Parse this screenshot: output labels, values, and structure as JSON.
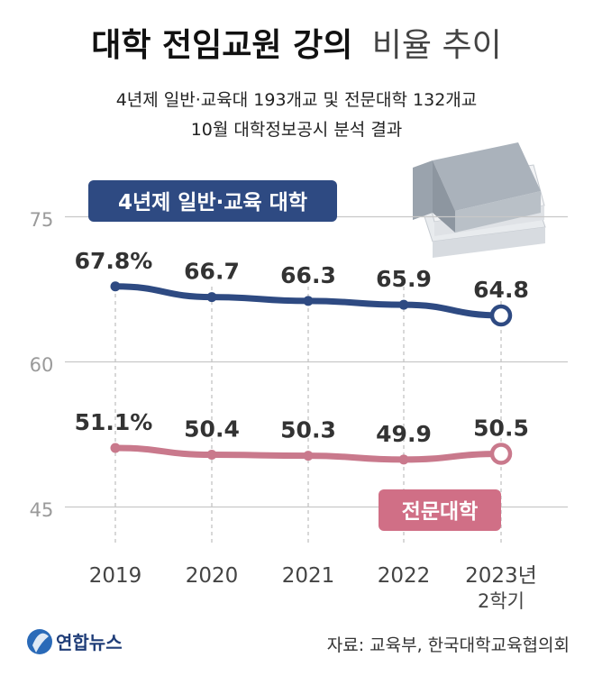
{
  "header": {
    "title_bold": "대학 전임교원 강의",
    "title_light": "비율 추이",
    "subtitle_line1": "4년제 일반·교육대 193개교 및 전문대학 132개교",
    "subtitle_line2": "10월 대학정보공시 분석 결과"
  },
  "footer": {
    "logo_text": "연합뉴스",
    "source": "자료: 교육부, 한국대학교육협의회"
  },
  "colors": {
    "series_general": "#2e4a82",
    "series_junior": "#c9798c",
    "label_general_bg": "#2e4a82",
    "label_junior_bg": "#d06f86",
    "grid": "#c8c8c8",
    "tick_text": "#9a9a9a",
    "book": "#9aa3ad"
  },
  "chart_data": {
    "type": "line",
    "title": "대학 전임교원 강의 비율 추이",
    "categories": [
      "2019",
      "2020",
      "2021",
      "2022",
      "2023년"
    ],
    "category_sublabels": [
      "",
      "",
      "",
      "",
      "2학기"
    ],
    "yticks": [
      75,
      60,
      45
    ],
    "ylim": [
      42,
      80
    ],
    "series": [
      {
        "name": "4년제 일반·교육 대학",
        "values": [
          67.8,
          66.7,
          66.3,
          65.9,
          64.8
        ],
        "labels": [
          "67.8%",
          "66.7",
          "66.3",
          "65.9",
          "64.8"
        ]
      },
      {
        "name": "전문대학",
        "values": [
          51.1,
          50.4,
          50.3,
          49.9,
          50.5
        ],
        "labels": [
          "51.1%",
          "50.4",
          "50.3",
          "49.9",
          "50.5"
        ]
      }
    ]
  }
}
